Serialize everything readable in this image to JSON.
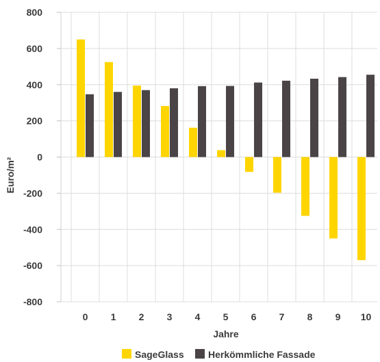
{
  "chart_data": {
    "type": "bar",
    "categories": [
      "0",
      "1",
      "2",
      "3",
      "4",
      "5",
      "6",
      "7",
      "8",
      "9",
      "10"
    ],
    "series": [
      {
        "name": "SageGlass",
        "values": [
          650,
          525,
          395,
          282,
          162,
          38,
          -82,
          -197,
          -325,
          -450,
          -570
        ],
        "color": "#ffd500"
      },
      {
        "name": "Herkömmliche Fassade",
        "values": [
          347,
          360,
          370,
          380,
          392,
          393,
          412,
          422,
          433,
          442,
          455
        ],
        "color": "#4a4446"
      }
    ],
    "yticks": [
      "800",
      "600",
      "400",
      "200",
      "0",
      "-200",
      "-400",
      "-600",
      "-800"
    ],
    "ylim": [
      -800,
      800
    ],
    "xlabel": "Jahre",
    "ylabel": "Euro/m²",
    "grid": true,
    "legend": "bottom"
  }
}
